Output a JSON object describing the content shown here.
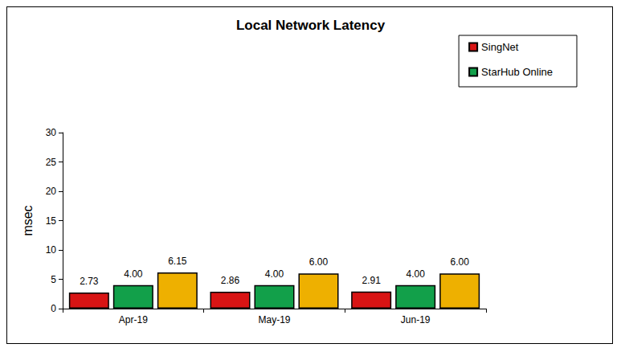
{
  "chart_data": {
    "type": "bar",
    "title": "Local Network Latency",
    "categories": [
      "Apr-19",
      "May-19",
      "Jun-19"
    ],
    "series": [
      {
        "name": "SingNet",
        "color": "#d81414",
        "values": [
          2.73,
          2.86,
          2.91
        ],
        "value_labels": [
          "2.73",
          "2.86",
          "2.91"
        ]
      },
      {
        "name": "StarHub Online",
        "color": "#12a04a",
        "values": [
          4.0,
          4.0,
          4.0
        ],
        "value_labels": [
          "4.00",
          "4.00",
          "4.00"
        ]
      },
      {
        "color": "#eeb000",
        "values": [
          6.15,
          6.0,
          6.0
        ],
        "value_labels": [
          "6.15",
          "6.00",
          "6.00"
        ]
      }
    ],
    "y_label": "msec",
    "ylim": [
      0,
      30
    ],
    "yticks": [
      0,
      5,
      10,
      15,
      20,
      25,
      30
    ],
    "grid": false,
    "legend": "top-right",
    "data_labels": true
  }
}
